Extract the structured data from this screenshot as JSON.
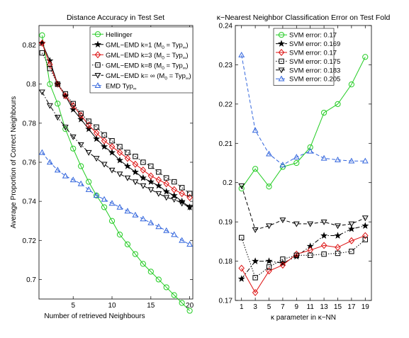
{
  "chart_data": [
    {
      "type": "line",
      "title": "Distance Accuracy in Test Set",
      "xlabel": "Number of retrieved Neighbours",
      "ylabel": "Average Proportion of Correct Neighbours",
      "xlim": [
        0.6,
        20.4
      ],
      "ylim": [
        0.69,
        0.83
      ],
      "xticks": [
        5,
        10,
        15,
        20
      ],
      "yticks": [
        0.7,
        0.72,
        0.74,
        0.76,
        0.78,
        0.8,
        0.82
      ],
      "ytick_labels": [
        "0.7",
        "0.72",
        "0.74",
        "0.76",
        "0.78",
        "0.8",
        "0.82"
      ],
      "grid": false,
      "legend_position": "top-right",
      "x": [
        1,
        2,
        3,
        4,
        5,
        6,
        7,
        8,
        9,
        10,
        11,
        12,
        13,
        14,
        15,
        16,
        17,
        18,
        19,
        20
      ],
      "series": [
        {
          "name": "Hellinger",
          "name_sub": "",
          "name_tail": "",
          "color": "#22cc22",
          "marker": "circle",
          "dash": "solid",
          "values": [
            0.825,
            0.8,
            0.79,
            0.777,
            0.767,
            0.758,
            0.75,
            0.743,
            0.737,
            0.73,
            0.723,
            0.718,
            0.713,
            0.708,
            0.704,
            0.7,
            0.696,
            0.692,
            0.688,
            0.684
          ]
        },
        {
          "name": "GML−EMD k=1 (M",
          "name_sub": "0",
          "name_tail": " = Typ",
          "name_tail_sub": "∞",
          "name_end": ")",
          "color": "#000000",
          "marker": "star",
          "dash": "solid",
          "values": [
            0.821,
            0.812,
            0.8,
            0.794,
            0.787,
            0.782,
            0.777,
            0.772,
            0.768,
            0.765,
            0.761,
            0.758,
            0.755,
            0.752,
            0.75,
            0.748,
            0.745,
            0.743,
            0.74,
            0.737
          ]
        },
        {
          "name": "GML−EMD k=3 (M",
          "name_sub": "0",
          "name_tail": " = Typ",
          "name_tail_sub": "∞",
          "name_end": ")",
          "color": "#dd1111",
          "marker": "diamond",
          "dash": "solid",
          "values": [
            0.821,
            0.81,
            0.8,
            0.794,
            0.789,
            0.784,
            0.779,
            0.775,
            0.771,
            0.768,
            0.765,
            0.762,
            0.759,
            0.756,
            0.753,
            0.751,
            0.749,
            0.746,
            0.744,
            0.742
          ]
        },
        {
          "name": "GML−EMD k=8 (M",
          "name_sub": "0",
          "name_tail": " = Typ",
          "name_tail_sub": "∞",
          "name_end": ")",
          "color": "#000000",
          "marker": "square",
          "dash": "dotted",
          "values": [
            0.816,
            0.808,
            0.8,
            0.795,
            0.79,
            0.785,
            0.781,
            0.778,
            0.774,
            0.771,
            0.768,
            0.765,
            0.763,
            0.76,
            0.758,
            0.755,
            0.752,
            0.75,
            0.747,
            0.744
          ]
        },
        {
          "name": "GML−EMD k= ∞ (M",
          "name_sub": "0",
          "name_tail": " = Typ",
          "name_tail_sub": "∞",
          "name_end": ")",
          "color": "#000000",
          "marker": "triangle-down",
          "dash": "dashdot",
          "values": [
            0.796,
            0.789,
            0.783,
            0.778,
            0.773,
            0.769,
            0.765,
            0.762,
            0.759,
            0.756,
            0.754,
            0.752,
            0.75,
            0.748,
            0.746,
            0.744,
            0.742,
            0.741,
            0.739,
            0.737
          ]
        },
        {
          "name": "EMD Typ",
          "name_sub": "∞",
          "name_tail": "",
          "color": "#3366dd",
          "marker": "triangle-up",
          "dash": "dashed",
          "values": [
            0.765,
            0.76,
            0.756,
            0.753,
            0.751,
            0.749,
            0.746,
            0.743,
            0.741,
            0.739,
            0.737,
            0.735,
            0.733,
            0.731,
            0.729,
            0.727,
            0.725,
            0.723,
            0.72,
            0.718
          ]
        }
      ]
    },
    {
      "type": "line",
      "title": "κ−Nearest Neighbor Classification Error on Test Fold",
      "xlabel": "κ parameter in κ−NN",
      "ylabel": "",
      "xlim": [
        0.1,
        19.9
      ],
      "ylim": [
        0.17,
        0.24
      ],
      "xticks": [
        1,
        3,
        5,
        7,
        9,
        11,
        13,
        15,
        17,
        19
      ],
      "yticks": [
        0.17,
        0.18,
        0.19,
        0.2,
        0.21,
        0.22,
        0.23,
        0.24
      ],
      "ytick_labels": [
        "0.17",
        "0.18",
        "0.19",
        "0.2",
        "0.21",
        "0.22",
        "0.23",
        "0.24"
      ],
      "grid": false,
      "legend_position": "top-center",
      "x": [
        1,
        3,
        5,
        7,
        9,
        11,
        13,
        15,
        17,
        19
      ],
      "series": [
        {
          "name": "SVM error: 0.17",
          "color": "#22cc22",
          "marker": "circle",
          "dash": "solid",
          "values": [
            0.1985,
            0.2035,
            0.199,
            0.204,
            0.205,
            0.209,
            0.2178,
            0.22,
            0.225,
            0.232
          ]
        },
        {
          "name": "SVM error: 0.169",
          "color": "#000000",
          "marker": "star",
          "dash": "dashdot",
          "values": [
            0.1755,
            0.18,
            0.18,
            0.1795,
            0.1812,
            0.1838,
            0.1865,
            0.1865,
            0.1882,
            0.189
          ]
        },
        {
          "name": "SVM error: 0.17",
          "color": "#dd1111",
          "marker": "diamond",
          "dash": "solid",
          "values": [
            0.1782,
            0.172,
            0.1775,
            0.179,
            0.1818,
            0.1828,
            0.184,
            0.1835,
            0.1852,
            0.1865
          ]
        },
        {
          "name": "SVM error: 0.175",
          "color": "#000000",
          "marker": "square",
          "dash": "dotted",
          "values": [
            0.186,
            0.1758,
            0.1785,
            0.1805,
            0.1815,
            0.1815,
            0.1818,
            0.182,
            0.1825,
            0.1855
          ]
        },
        {
          "name": "SVM error: 0.183",
          "color": "#000000",
          "marker": "triangle-down",
          "dash": "dashed",
          "values": [
            0.1992,
            0.188,
            0.189,
            0.1905,
            0.1895,
            0.1895,
            0.19,
            0.189,
            0.1895,
            0.191
          ]
        },
        {
          "name": "SVM error: 0.205",
          "color": "#3366dd",
          "marker": "triangle-up",
          "dash": "dashed",
          "values": [
            0.2325,
            0.2133,
            0.2073,
            0.2045,
            0.2065,
            0.208,
            0.2062,
            0.2058,
            0.2055,
            0.2055
          ]
        }
      ]
    }
  ]
}
